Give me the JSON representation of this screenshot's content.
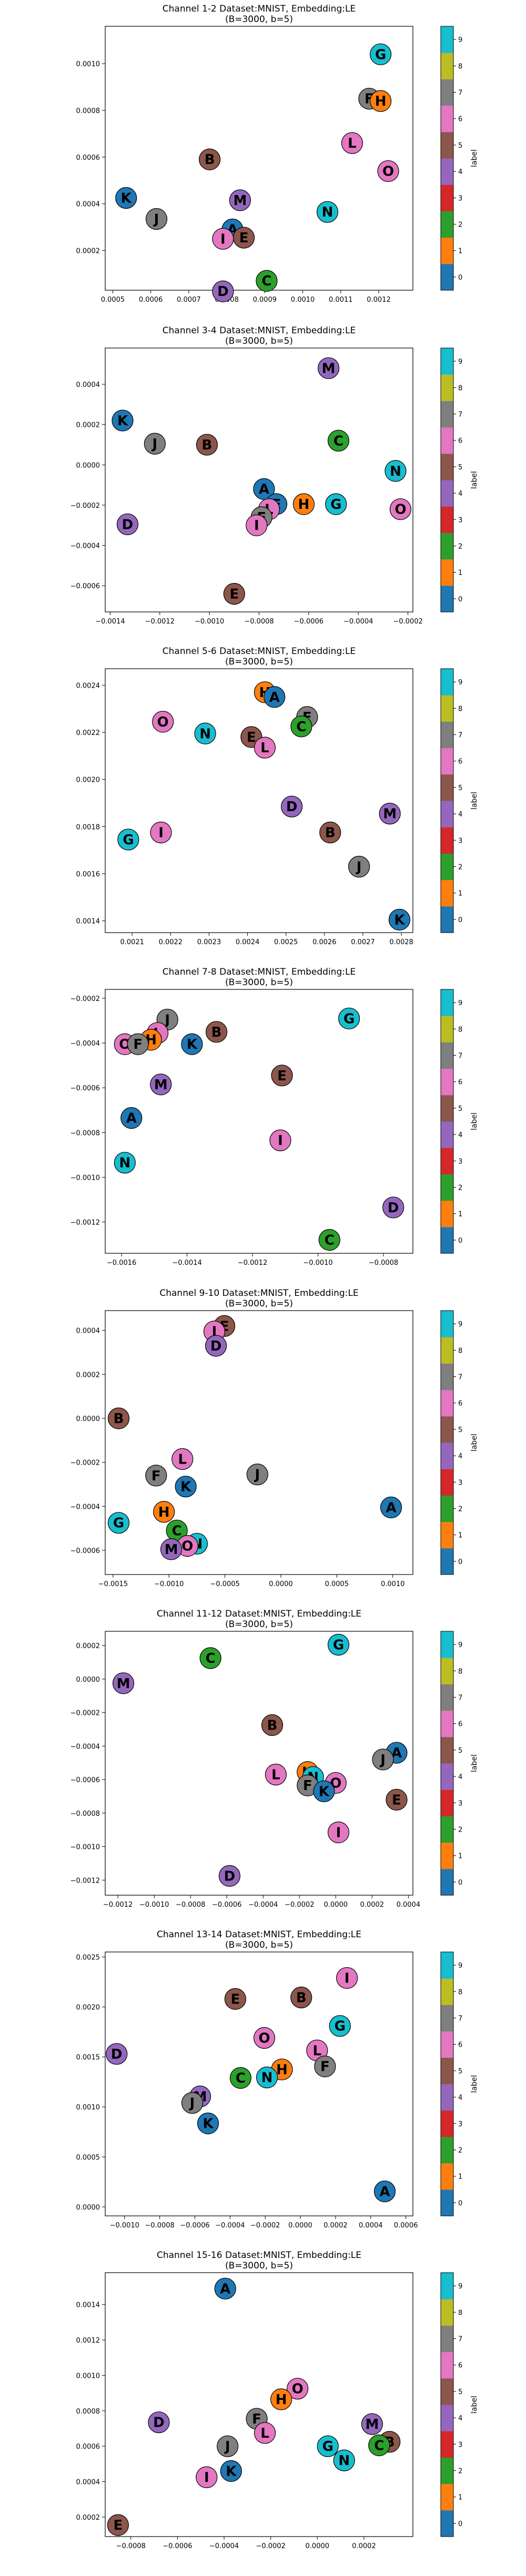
{
  "figure": {
    "colorbar_label": "label",
    "colorbar_ticks": [
      "0",
      "1",
      "2",
      "3",
      "4",
      "5",
      "6",
      "7",
      "8",
      "9"
    ],
    "colors": [
      "#1f77b4",
      "#ff7f0e",
      "#2ca02c",
      "#d62728",
      "#9467bd",
      "#8c564b",
      "#e377c2",
      "#7f7f7f",
      "#bcbd22",
      "#17becf"
    ]
  },
  "chart_data": [
    {
      "type": "scatter",
      "title": "Channel 1-2 Dataset:MNIST, Embedding:LE",
      "subtitle": "(B=3000, b=5)",
      "xlim": [
        0.00048,
        0.00129
      ],
      "ylim": [
        3e-05,
        0.00116
      ],
      "xticks": [
        "0.0005",
        "0.0006",
        "0.0007",
        "0.0008",
        "0.0009",
        "0.0010",
        "0.0011",
        "0.0012"
      ],
      "yticks": [
        "0.0002",
        "0.0004",
        "0.0006",
        "0.0008",
        "0.0010"
      ],
      "points": [
        {
          "label": "G",
          "x": 0.001205,
          "y": 0.00104,
          "c": 9
        },
        {
          "label": "F",
          "x": 0.001175,
          "y": 0.00085,
          "c": 7
        },
        {
          "label": "H",
          "x": 0.001205,
          "y": 0.00084,
          "c": 1
        },
        {
          "label": "L",
          "x": 0.00113,
          "y": 0.00066,
          "c": 6
        },
        {
          "label": "B",
          "x": 0.000755,
          "y": 0.00059,
          "c": 5
        },
        {
          "label": "O",
          "x": 0.001225,
          "y": 0.00054,
          "c": 6
        },
        {
          "label": "K",
          "x": 0.000535,
          "y": 0.000425,
          "c": 0
        },
        {
          "label": "M",
          "x": 0.000835,
          "y": 0.000415,
          "c": 4
        },
        {
          "label": "N",
          "x": 0.001065,
          "y": 0.000365,
          "c": 9
        },
        {
          "label": "J",
          "x": 0.000615,
          "y": 0.000335,
          "c": 7
        },
        {
          "label": "A",
          "x": 0.000815,
          "y": 0.00029,
          "c": 0
        },
        {
          "label": "I",
          "x": 0.00079,
          "y": 0.00025,
          "c": 6
        },
        {
          "label": "E",
          "x": 0.000845,
          "y": 0.000255,
          "c": 5
        },
        {
          "label": "C",
          "x": 0.000905,
          "y": 7e-05,
          "c": 2
        },
        {
          "label": "D",
          "x": 0.00079,
          "y": 2.5e-05,
          "c": 4
        }
      ]
    },
    {
      "type": "scatter",
      "title": "Channel 3-4 Dataset:MNIST, Embedding:LE",
      "subtitle": "(B=3000, b=5)",
      "xlim": [
        -0.00142,
        -0.00018
      ],
      "ylim": [
        -0.00073,
        0.00058
      ],
      "xticks": [
        "−0.0014",
        "−0.0012",
        "−0.0010",
        "−0.0008",
        "−0.0006",
        "−0.0004",
        "−0.0002"
      ],
      "yticks": [
        "−0.0006",
        "−0.0004",
        "−0.0002",
        "0.0000",
        "0.0002",
        "0.0004"
      ],
      "points": [
        {
          "label": "M",
          "x": -0.00052,
          "y": 0.00048,
          "c": 4
        },
        {
          "label": "K",
          "x": -0.00135,
          "y": 0.00022,
          "c": 0
        },
        {
          "label": "J",
          "x": -0.00122,
          "y": 0.000105,
          "c": 7
        },
        {
          "label": "B",
          "x": -0.00101,
          "y": 0.0001,
          "c": 5
        },
        {
          "label": "C",
          "x": -0.00048,
          "y": 0.00012,
          "c": 2
        },
        {
          "label": "N",
          "x": -0.00025,
          "y": -3e-05,
          "c": 9
        },
        {
          "label": "A",
          "x": -0.00078,
          "y": -0.00012,
          "c": 0
        },
        {
          "label": "H",
          "x": -0.00062,
          "y": -0.000195,
          "c": 1
        },
        {
          "label": "G",
          "x": -0.00049,
          "y": -0.000195,
          "c": 9
        },
        {
          "label": "E",
          "x": -0.00073,
          "y": -0.000195,
          "c": 0
        },
        {
          "label": "L",
          "x": -0.00076,
          "y": -0.00022,
          "c": 6
        },
        {
          "label": "F",
          "x": -0.00079,
          "y": -0.00026,
          "c": 7
        },
        {
          "label": "O",
          "x": -0.00023,
          "y": -0.00022,
          "c": 6
        },
        {
          "label": "D",
          "x": -0.00133,
          "y": -0.000295,
          "c": 4
        },
        {
          "label": "I",
          "x": -0.00081,
          "y": -0.0003,
          "c": 6
        },
        {
          "label": "E",
          "x": -0.0009,
          "y": -0.00064,
          "c": 5
        }
      ]
    },
    {
      "type": "scatter",
      "title": "Channel 5-6 Dataset:MNIST, Embedding:LE",
      "subtitle": "(B=3000, b=5)",
      "xlim": [
        0.00203,
        0.00283
      ],
      "ylim": [
        0.00135,
        0.00247
      ],
      "xticks": [
        "0.0021",
        "0.0022",
        "0.0023",
        "0.0024",
        "0.0025",
        "0.0026",
        "0.0027",
        "0.0028"
      ],
      "yticks": [
        "0.0014",
        "0.0016",
        "0.0018",
        "0.0020",
        "0.0022",
        "0.0024"
      ],
      "points": [
        {
          "label": "H",
          "x": 0.002445,
          "y": 0.00237,
          "c": 1
        },
        {
          "label": "A",
          "x": 0.00247,
          "y": 0.00235,
          "c": 0
        },
        {
          "label": "F",
          "x": 0.002555,
          "y": 0.002265,
          "c": 7
        },
        {
          "label": "C",
          "x": 0.00254,
          "y": 0.002225,
          "c": 2
        },
        {
          "label": "O",
          "x": 0.00218,
          "y": 0.002245,
          "c": 6
        },
        {
          "label": "N",
          "x": 0.00229,
          "y": 0.002195,
          "c": 9
        },
        {
          "label": "E",
          "x": 0.00241,
          "y": 0.00218,
          "c": 5
        },
        {
          "label": "L",
          "x": 0.002445,
          "y": 0.002135,
          "c": 6
        },
        {
          "label": "D",
          "x": 0.002515,
          "y": 0.001885,
          "c": 4
        },
        {
          "label": "M",
          "x": 0.00277,
          "y": 0.001855,
          "c": 4
        },
        {
          "label": "B",
          "x": 0.002615,
          "y": 0.001775,
          "c": 5
        },
        {
          "label": "I",
          "x": 0.002175,
          "y": 0.001775,
          "c": 6
        },
        {
          "label": "G",
          "x": 0.00209,
          "y": 0.001745,
          "c": 9
        },
        {
          "label": "J",
          "x": 0.00269,
          "y": 0.00163,
          "c": 7
        },
        {
          "label": "K",
          "x": 0.002795,
          "y": 0.001405,
          "c": 0
        }
      ]
    },
    {
      "type": "scatter",
      "title": "Channel 7-8 Dataset:MNIST, Embedding:LE",
      "subtitle": "(B=3000, b=5)",
      "xlim": [
        -0.00165,
        -0.00071
      ],
      "ylim": [
        -0.00134,
        -0.00016
      ],
      "xticks": [
        "−0.0016",
        "−0.0014",
        "−0.0012",
        "−0.0010",
        "−0.0008"
      ],
      "yticks": [
        "−0.0012",
        "−0.0010",
        "−0.0008",
        "−0.0006",
        "−0.0004",
        "−0.0002"
      ],
      "points": [
        {
          "label": "G",
          "x": -0.000905,
          "y": -0.00029,
          "c": 9
        },
        {
          "label": "J",
          "x": -0.00146,
          "y": -0.000295,
          "c": 7
        },
        {
          "label": "B",
          "x": -0.00131,
          "y": -0.00035,
          "c": 5
        },
        {
          "label": "L",
          "x": -0.00149,
          "y": -0.000355,
          "c": 6
        },
        {
          "label": "H",
          "x": -0.00151,
          "y": -0.000385,
          "c": 1
        },
        {
          "label": "O",
          "x": -0.00159,
          "y": -0.000405,
          "c": 6
        },
        {
          "label": "F",
          "x": -0.00155,
          "y": -0.000405,
          "c": 7
        },
        {
          "label": "K",
          "x": -0.001385,
          "y": -0.000405,
          "c": 0
        },
        {
          "label": "E",
          "x": -0.00111,
          "y": -0.000545,
          "c": 5
        },
        {
          "label": "M",
          "x": -0.00148,
          "y": -0.000585,
          "c": 4
        },
        {
          "label": "A",
          "x": -0.00157,
          "y": -0.000735,
          "c": 0
        },
        {
          "label": "I",
          "x": -0.001115,
          "y": -0.000835,
          "c": 6
        },
        {
          "label": "N",
          "x": -0.00159,
          "y": -0.000935,
          "c": 9
        },
        {
          "label": "D",
          "x": -0.00077,
          "y": -0.001135,
          "c": 4
        },
        {
          "label": "C",
          "x": -0.000965,
          "y": -0.00128,
          "c": 2
        }
      ]
    },
    {
      "type": "scatter",
      "title": "Channel 9-10 Dataset:MNIST, Embedding:LE",
      "subtitle": "(B=3000, b=5)",
      "xlim": [
        -0.00157,
        0.00118
      ],
      "ylim": [
        -0.00071,
        0.00049
      ],
      "xticks": [
        "−0.0015",
        "−0.0010",
        "−0.0005",
        "0.0000",
        "0.0005",
        "0.0010"
      ],
      "yticks": [
        "−0.0006",
        "−0.0004",
        "−0.0002",
        "0.0000",
        "0.0002",
        "0.0004"
      ],
      "points": [
        {
          "label": "E",
          "x": -0.000505,
          "y": 0.00042,
          "c": 5
        },
        {
          "label": "I",
          "x": -0.000595,
          "y": 0.000395,
          "c": 6
        },
        {
          "label": "D",
          "x": -0.00058,
          "y": 0.00033,
          "c": 4
        },
        {
          "label": "B",
          "x": -0.00145,
          "y": 0.0,
          "c": 5
        },
        {
          "label": "L",
          "x": -0.00088,
          "y": -0.000185,
          "c": 6
        },
        {
          "label": "F",
          "x": -0.001115,
          "y": -0.00026,
          "c": 7
        },
        {
          "label": "J",
          "x": -0.00021,
          "y": -0.000255,
          "c": 7
        },
        {
          "label": "K",
          "x": -0.00085,
          "y": -0.00031,
          "c": 0
        },
        {
          "label": "A",
          "x": 0.000985,
          "y": -0.000405,
          "c": 0
        },
        {
          "label": "H",
          "x": -0.001045,
          "y": -0.000425,
          "c": 1
        },
        {
          "label": "G",
          "x": -0.00145,
          "y": -0.000475,
          "c": 9
        },
        {
          "label": "C",
          "x": -0.00093,
          "y": -0.00051,
          "c": 2
        },
        {
          "label": "N",
          "x": -0.00075,
          "y": -0.00057,
          "c": 9
        },
        {
          "label": "O",
          "x": -0.000835,
          "y": -0.00058,
          "c": 6
        },
        {
          "label": "M",
          "x": -0.00098,
          "y": -0.000595,
          "c": 4
        }
      ]
    },
    {
      "type": "scatter",
      "title": "Channel 11-12 Dataset:MNIST, Embedding:LE",
      "subtitle": "(B=3000, b=5)",
      "xlim": [
        -0.00127,
        0.000425
      ],
      "ylim": [
        -0.00129,
        0.000285
      ],
      "xticks": [
        "−0.0012",
        "−0.0010",
        "−0.0008",
        "−0.0006",
        "−0.0004",
        "−0.0002",
        "0.0000",
        "0.0002",
        "0.0004"
      ],
      "yticks": [
        "−0.0012",
        "−0.0010",
        "−0.0008",
        "−0.0006",
        "−0.0004",
        "−0.0002",
        "0.0000",
        "0.0002"
      ],
      "points": [
        {
          "label": "G",
          "x": 1.5e-05,
          "y": 0.000205,
          "c": 9
        },
        {
          "label": "C",
          "x": -0.00069,
          "y": 0.000125,
          "c": 2
        },
        {
          "label": "M",
          "x": -0.00117,
          "y": -2.5e-05,
          "c": 4
        },
        {
          "label": "B",
          "x": -0.00035,
          "y": -0.000275,
          "c": 5
        },
        {
          "label": "A",
          "x": 0.000335,
          "y": -0.00044,
          "c": 0
        },
        {
          "label": "J",
          "x": 0.00026,
          "y": -0.00048,
          "c": 7
        },
        {
          "label": "H",
          "x": -0.000155,
          "y": -0.000555,
          "c": 1
        },
        {
          "label": "N",
          "x": -0.000125,
          "y": -0.000585,
          "c": 9
        },
        {
          "label": "L",
          "x": -0.00033,
          "y": -0.00057,
          "c": 6
        },
        {
          "label": "O",
          "x": 0.0,
          "y": -0.00062,
          "c": 6
        },
        {
          "label": "F",
          "x": -0.000155,
          "y": -0.000635,
          "c": 7
        },
        {
          "label": "K",
          "x": -6.5e-05,
          "y": -0.00067,
          "c": 0
        },
        {
          "label": "E",
          "x": 0.000335,
          "y": -0.00072,
          "c": 5
        },
        {
          "label": "I",
          "x": 1.5e-05,
          "y": -0.000915,
          "c": 6
        },
        {
          "label": "D",
          "x": -0.000585,
          "y": -0.001175,
          "c": 4
        }
      ]
    },
    {
      "type": "scatter",
      "title": "Channel 13-14 Dataset:MNIST, Embedding:LE",
      "subtitle": "(B=3000, b=5)",
      "xlim": [
        -0.00111,
        0.00064
      ],
      "ylim": [
        -9e-05,
        0.00255
      ],
      "xticks": [
        "−0.0010",
        "−0.0008",
        "−0.0006",
        "−0.0004",
        "−0.0002",
        "0.0000",
        "0.0002",
        "0.0004",
        "0.0006"
      ],
      "yticks": [
        "0.0000",
        "0.0005",
        "0.0010",
        "0.0015",
        "0.0020",
        "0.0025"
      ],
      "points": [
        {
          "label": "I",
          "x": 0.000265,
          "y": 0.00229,
          "c": 6
        },
        {
          "label": "E",
          "x": -0.00037,
          "y": 0.00208,
          "c": 5
        },
        {
          "label": "B",
          "x": 5e-06,
          "y": 0.002095,
          "c": 5
        },
        {
          "label": "G",
          "x": 0.000225,
          "y": 0.00181,
          "c": 9
        },
        {
          "label": "O",
          "x": -0.000205,
          "y": 0.00169,
          "c": 6
        },
        {
          "label": "L",
          "x": 9.5e-05,
          "y": 0.001565,
          "c": 6
        },
        {
          "label": "D",
          "x": -0.001045,
          "y": 0.00153,
          "c": 4
        },
        {
          "label": "F",
          "x": 0.00014,
          "y": 0.001405,
          "c": 7
        },
        {
          "label": "H",
          "x": -0.000105,
          "y": 0.001375,
          "c": 1
        },
        {
          "label": "N",
          "x": -0.00019,
          "y": 0.001295,
          "c": 9
        },
        {
          "label": "C",
          "x": -0.00034,
          "y": 0.00129,
          "c": 2
        },
        {
          "label": "M",
          "x": -0.00057,
          "y": 0.001105,
          "c": 4
        },
        {
          "label": "J",
          "x": -0.000615,
          "y": 0.00104,
          "c": 7
        },
        {
          "label": "K",
          "x": -0.000525,
          "y": 0.000835,
          "c": 0
        },
        {
          "label": "A",
          "x": 0.00048,
          "y": 0.000155,
          "c": 0
        }
      ]
    },
    {
      "type": "scatter",
      "title": "Channel 15-16 Dataset:MNIST, Embedding:LE",
      "subtitle": "(B=3000, b=5)",
      "xlim": [
        -0.00091,
        0.00041
      ],
      "ylim": [
        9e-05,
        0.00158
      ],
      "xticks": [
        "−0.0008",
        "−0.0006",
        "−0.0004",
        "−0.0002",
        "0.0000",
        "0.0002"
      ],
      "yticks": [
        "0.0002",
        "0.0004",
        "0.0006",
        "0.0008",
        "0.0010",
        "0.0012",
        "0.0014"
      ],
      "points": [
        {
          "label": "A",
          "x": -0.000395,
          "y": 0.00149,
          "c": 0
        },
        {
          "label": "O",
          "x": -8.5e-05,
          "y": 0.000925,
          "c": 6
        },
        {
          "label": "H",
          "x": -0.000155,
          "y": 0.000865,
          "c": 1
        },
        {
          "label": "F",
          "x": -0.00026,
          "y": 0.000755,
          "c": 7
        },
        {
          "label": "D",
          "x": -0.00068,
          "y": 0.000735,
          "c": 4
        },
        {
          "label": "M",
          "x": 0.000235,
          "y": 0.000725,
          "c": 4
        },
        {
          "label": "L",
          "x": -0.000225,
          "y": 0.000675,
          "c": 6
        },
        {
          "label": "B",
          "x": 0.00031,
          "y": 0.000625,
          "c": 5
        },
        {
          "label": "C",
          "x": 0.000265,
          "y": 0.000605,
          "c": 2
        },
        {
          "label": "G",
          "x": 4.5e-05,
          "y": 0.0006,
          "c": 9
        },
        {
          "label": "J",
          "x": -0.000385,
          "y": 0.0006,
          "c": 7
        },
        {
          "label": "N",
          "x": 0.000115,
          "y": 0.00052,
          "c": 9
        },
        {
          "label": "K",
          "x": -0.00037,
          "y": 0.00046,
          "c": 0
        },
        {
          "label": "I",
          "x": -0.000475,
          "y": 0.000425,
          "c": 6
        },
        {
          "label": "E",
          "x": -0.000855,
          "y": 0.000155,
          "c": 5
        }
      ]
    }
  ]
}
